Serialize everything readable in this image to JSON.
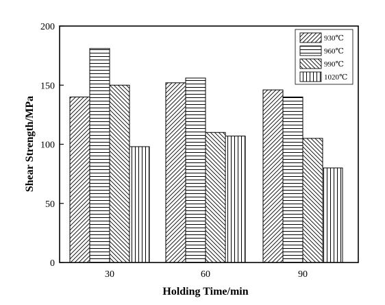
{
  "chart_data": {
    "type": "bar",
    "title": "",
    "xlabel": "Holding Time/min",
    "ylabel": "Shear Strength/MPa",
    "categories": [
      "30",
      "60",
      "90"
    ],
    "ylim": [
      0,
      200
    ],
    "yticks": [
      0,
      50,
      100,
      150,
      200
    ],
    "grid": false,
    "legend_position": "top-right",
    "series": [
      {
        "name": "930℃",
        "pattern": "diagonal-up",
        "values": [
          140,
          152,
          146
        ]
      },
      {
        "name": "960℃",
        "pattern": "horizontal",
        "values": [
          181,
          156,
          140
        ]
      },
      {
        "name": "990℃",
        "pattern": "diagonal-down",
        "values": [
          150,
          110,
          105
        ]
      },
      {
        "name": "1020℃",
        "pattern": "vertical",
        "values": [
          98,
          107,
          80
        ]
      }
    ],
    "colors": {
      "line": "#000000",
      "background": "#ffffff"
    }
  }
}
